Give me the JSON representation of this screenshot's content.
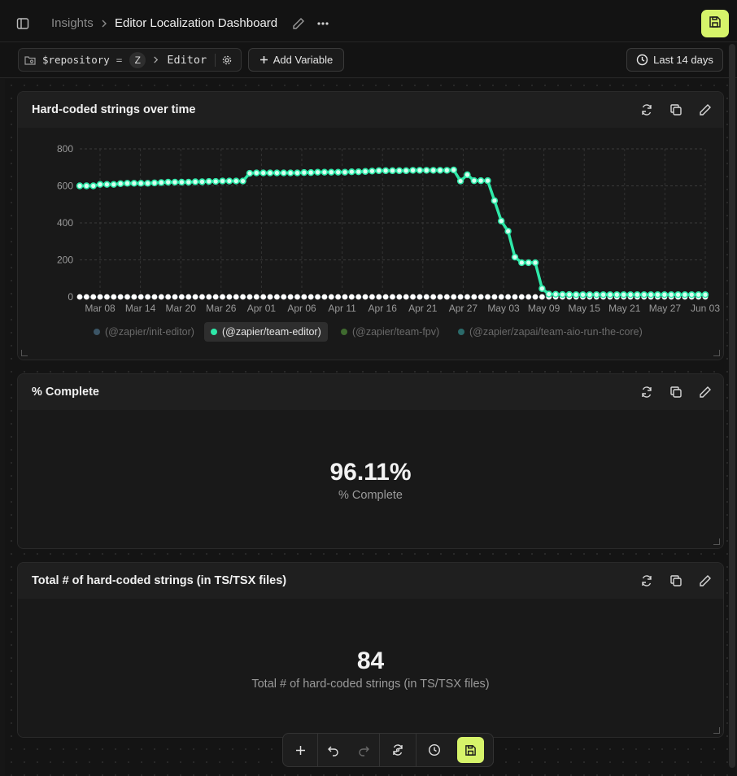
{
  "header": {
    "breadcrumb_root": "Insights",
    "breadcrumb_page": "Editor Localization Dashboard",
    "icons": [
      "sidebar-toggle-icon",
      "chevron-right-icon",
      "pencil-icon",
      "more-icon",
      "save-icon"
    ]
  },
  "toolbar": {
    "variable_name": "$repository",
    "variable_operator": "=",
    "variable_badge": "Z",
    "variable_value": "Editor",
    "add_variable_label": "Add Variable",
    "date_range_label": "Last 14 days"
  },
  "cards": [
    {
      "title": "Hard-coded strings over time",
      "actions": [
        "refresh-icon",
        "copy-icon",
        "edit-icon"
      ]
    },
    {
      "title": "% Complete",
      "value": "96.11%",
      "subtitle": "% Complete"
    },
    {
      "title": "Total # of hard-coded strings (in TS/TSX files)",
      "value": "84",
      "subtitle": "Total # of hard-coded strings (in TS/TSX files)"
    }
  ],
  "chart_data": {
    "type": "line",
    "ylim": [
      0,
      800
    ],
    "y_ticks": [
      "0",
      "200",
      "400",
      "600",
      "800"
    ],
    "x_ticks": [
      "Mar 08",
      "Mar 14",
      "Mar 20",
      "Mar 26",
      "Apr 01",
      "Apr 06",
      "Apr 11",
      "Apr 16",
      "Apr 21",
      "Apr 27",
      "May 03",
      "May 09",
      "May 15",
      "May 21",
      "May 27",
      "Jun 03"
    ],
    "grid": true,
    "legend_position": "bottom",
    "series": [
      {
        "name": "(@zapier/init-editor)",
        "color": "#3c5566",
        "active": false,
        "values": [
          0,
          0,
          0,
          0,
          0,
          0,
          0,
          0,
          0,
          0,
          0,
          0,
          0,
          0,
          0,
          0,
          0,
          0,
          0,
          0,
          0,
          0,
          0,
          0,
          0,
          0,
          0,
          0,
          0,
          0,
          0,
          0,
          0,
          0,
          0,
          0,
          0,
          0,
          0,
          0,
          0,
          0,
          0,
          0,
          0,
          0,
          0,
          0,
          0,
          0,
          0,
          0,
          0,
          0,
          0,
          0,
          0,
          0,
          0,
          0,
          0,
          0,
          0,
          0,
          0,
          0,
          0,
          0,
          0,
          0,
          0,
          0,
          0,
          0,
          0,
          0,
          0,
          0,
          0,
          0,
          0,
          0,
          0,
          0,
          0,
          0,
          0,
          0,
          0,
          0,
          0,
          0,
          0
        ]
      },
      {
        "name": "(@zapier/team-editor)",
        "color": "#2ee8a8",
        "active": true,
        "values": [
          600,
          600,
          600,
          608,
          608,
          608,
          612,
          614,
          614,
          614,
          614,
          616,
          618,
          620,
          620,
          620,
          620,
          622,
          622,
          624,
          624,
          626,
          626,
          626,
          626,
          668,
          670,
          670,
          670,
          670,
          670,
          670,
          670,
          672,
          672,
          674,
          674,
          674,
          674,
          674,
          676,
          676,
          678,
          680,
          682,
          682,
          682,
          682,
          682,
          684,
          684,
          684,
          684,
          684,
          684,
          686,
          626,
          660,
          628,
          628,
          628,
          520,
          410,
          355,
          215,
          185,
          185,
          185,
          45,
          15,
          14,
          13,
          13,
          12,
          12,
          12,
          12,
          12,
          12,
          12,
          12,
          12,
          12,
          12,
          12,
          12,
          12,
          12,
          12,
          12,
          12,
          12,
          12
        ]
      },
      {
        "name": "(@zapier/team-fpv)",
        "color": "#3f6a2f",
        "active": false,
        "values": []
      },
      {
        "name": "(@zapier/zapai/team-aio-run-the-core)",
        "color": "#2b6a6a",
        "active": false,
        "values": []
      }
    ]
  },
  "bottom_toolbar": {
    "icons": [
      "add-icon",
      "undo-icon",
      "redo-icon",
      "sync-icon",
      "history-icon",
      "save-icon"
    ]
  }
}
